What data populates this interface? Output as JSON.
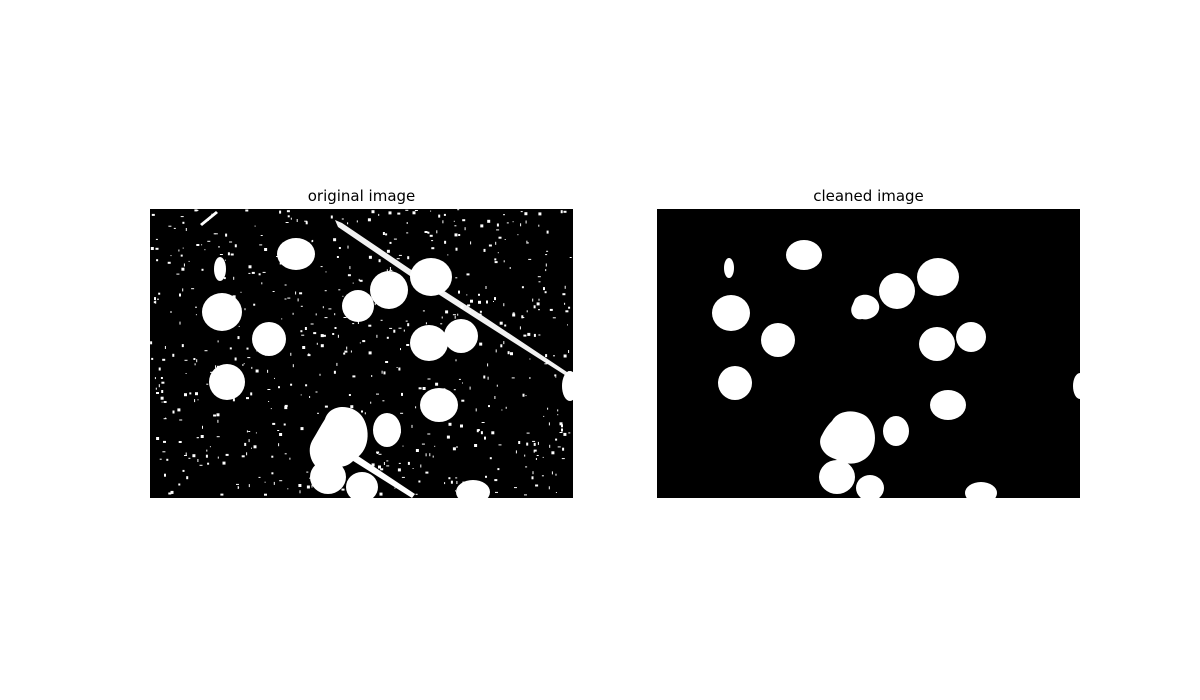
{
  "figure": {
    "left_panel": {
      "title": "original image",
      "background": "#000000",
      "foreground": "#ffffff"
    },
    "right_panel": {
      "title": "cleaned image",
      "background": "#000000",
      "foreground": "#ffffff"
    }
  }
}
